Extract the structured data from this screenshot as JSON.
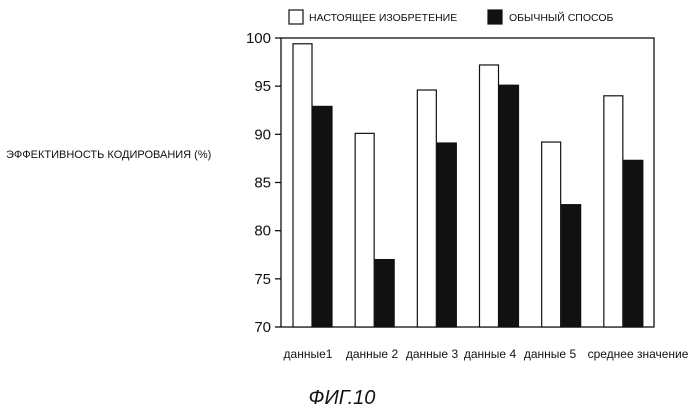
{
  "chart_data": {
    "type": "bar",
    "title": "",
    "ylabel": "ЭФФЕКТИВНОСТЬ КОДИРОВАНИЯ (%)",
    "xlabel": "",
    "ylim": [
      70,
      100
    ],
    "yticks": [
      70,
      75,
      80,
      85,
      90,
      95,
      100
    ],
    "grid": false,
    "legend_placement": "top",
    "categories": [
      "данные1",
      "данные 2",
      "данные 3",
      "данные 4",
      "данные 5",
      "среднее значение"
    ],
    "series": [
      {
        "name": "НАСТОЯЩЕЕ ИЗОБРЕТЕНИЕ",
        "color": "#ffffff",
        "values": [
          99.4,
          90.1,
          94.6,
          97.2,
          89.2,
          94.0
        ]
      },
      {
        "name": "ОБЫЧНЫЙ СПОСОБ",
        "color": "#111111",
        "values": [
          92.9,
          77.0,
          89.1,
          95.1,
          82.7,
          87.3
        ]
      }
    ]
  },
  "caption": "ФИГ.10"
}
